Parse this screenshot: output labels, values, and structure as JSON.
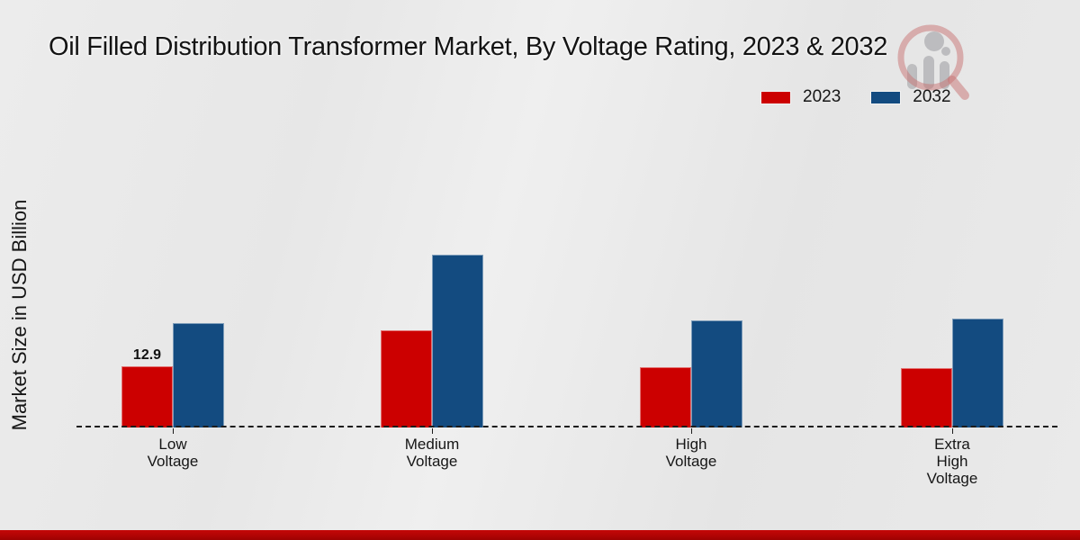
{
  "header": {
    "title": "Oil Filled Distribution Transformer Market, By Voltage Rating, 2023 & 2032",
    "watermark_icon": "magnifier-analytics-logo"
  },
  "chart_data": {
    "type": "bar",
    "title": "Oil Filled Distribution Transformer Market, By Voltage Rating, 2023 & 2032",
    "xlabel": "",
    "ylabel": "Market Size in USD Billion",
    "categories": [
      "Low\nVoltage",
      "Medium\nVoltage",
      "High\nVoltage",
      "Extra\nHigh\nVoltage"
    ],
    "series": [
      {
        "name": "2023",
        "color": "#cc0000",
        "values": [
          12.9,
          20.5,
          12.7,
          12.5
        ]
      },
      {
        "name": "2032",
        "color": "#134b80",
        "values": [
          22.0,
          36.4,
          22.6,
          22.9
        ]
      }
    ],
    "annotations": [
      {
        "series_index": 0,
        "category_index": 0,
        "text": "12.9"
      }
    ],
    "ylim": [
      0,
      40
    ],
    "grid": false,
    "legend_position": "top-right",
    "baseline_style": "dashed",
    "units": "USD Billion"
  },
  "footer": {
    "accent_color": "#b10404"
  }
}
